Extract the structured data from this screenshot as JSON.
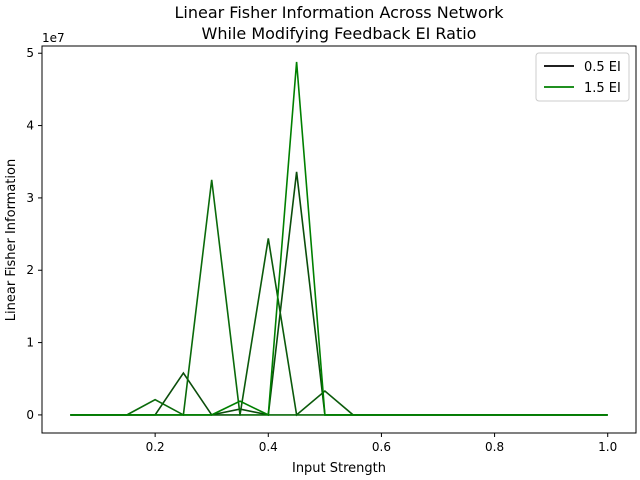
{
  "chart_data": {
    "type": "line",
    "title": "Linear Fisher Information Across Network",
    "subtitle": "While Modifying Feedback EI Ratio",
    "xlabel": "Input Strength",
    "ylabel": "Linear Fisher Information",
    "y_multiplier_label": "1e7",
    "xlim": [
      0.0,
      1.05
    ],
    "ylim": [
      -0.25,
      5.1
    ],
    "xticks": [
      0.2,
      0.4,
      0.6,
      0.8,
      1.0
    ],
    "xtick_labels": [
      "0.2",
      "0.4",
      "0.6",
      "0.8",
      "1.0"
    ],
    "yticks": [
      0,
      1,
      2,
      3,
      4,
      5
    ],
    "ytick_labels": [
      "0",
      "1",
      "2",
      "3",
      "4",
      "5"
    ],
    "grid": false,
    "legend_position": "top-right",
    "legend": [
      {
        "label": "0.5 EI",
        "color": "#000000"
      },
      {
        "label": "1.5 EI",
        "color": "#008000"
      }
    ],
    "x": [
      0.05,
      0.1,
      0.15,
      0.2,
      0.25,
      0.3,
      0.35,
      0.4,
      0.45,
      0.5,
      0.55,
      0.6,
      0.65,
      0.7,
      0.75,
      0.8,
      0.85,
      0.9,
      0.95,
      1.0
    ],
    "series": [
      {
        "color": "#0b4d0b",
        "values": [
          0,
          0,
          0,
          0,
          0.58,
          0,
          0.08,
          0,
          3.36,
          0,
          0,
          0,
          0,
          0,
          0,
          0,
          0,
          0,
          0,
          0
        ]
      },
      {
        "color": "#0b5a0b",
        "values": [
          0,
          0,
          0,
          0,
          0,
          0,
          0,
          2.44,
          0,
          0.33,
          0,
          0,
          0,
          0,
          0,
          0,
          0,
          0,
          0,
          0
        ]
      },
      {
        "color": "#0a6a0a",
        "values": [
          0,
          0,
          0,
          0.21,
          0,
          3.25,
          0,
          0,
          0,
          0,
          0,
          0,
          0,
          0,
          0,
          0,
          0,
          0,
          0,
          0
        ]
      },
      {
        "color": "#008000",
        "values": [
          0,
          0,
          0,
          0,
          0,
          0,
          0.19,
          0,
          4.88,
          0,
          0,
          0,
          0,
          0,
          0,
          0,
          0,
          0,
          0,
          0
        ]
      }
    ]
  }
}
